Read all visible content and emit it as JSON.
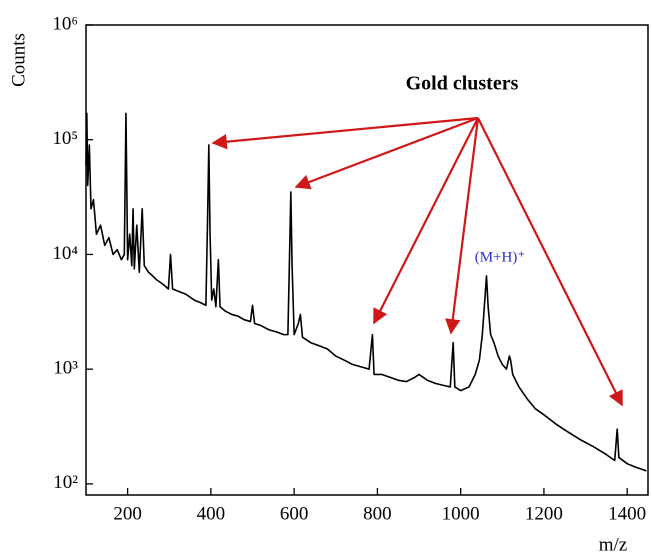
{
  "chart_data": {
    "type": "line",
    "log_y": true,
    "ylabel": "Counts",
    "xlabel": "m/z",
    "annotations": [
      "Gold clusters",
      "(M+H)⁺"
    ],
    "color": "#000000",
    "xlim": [
      100,
      1450
    ],
    "xticks": [
      200,
      400,
      600,
      800,
      1000,
      1200,
      1400
    ],
    "ylim": [
      80,
      1000000
    ],
    "yticks": [
      {
        "value": 100,
        "label": "10²"
      },
      {
        "value": 1000,
        "label": "10³"
      },
      {
        "value": 10000,
        "label": "10⁴"
      },
      {
        "value": 100000,
        "label": "10⁵"
      },
      {
        "value": 1000000,
        "label": "10⁶"
      }
    ],
    "x": [
      100,
      102,
      104,
      108,
      112,
      118,
      125,
      135,
      145,
      155,
      165,
      175,
      185,
      192,
      196,
      200,
      205,
      210,
      213,
      216,
      222,
      228,
      235,
      240,
      250,
      260,
      270,
      285,
      298,
      303,
      308,
      320,
      340,
      360,
      375,
      388,
      392,
      395,
      398,
      402,
      407,
      412,
      418,
      422,
      435,
      450,
      465,
      480,
      495,
      500,
      505,
      520,
      540,
      560,
      575,
      585,
      589,
      592,
      595,
      600,
      610,
      615,
      620,
      640,
      660,
      680,
      700,
      720,
      740,
      760,
      780,
      788,
      792,
      810,
      830,
      850,
      870,
      890,
      900,
      920,
      940,
      960,
      975,
      982,
      986,
      1000,
      1020,
      1035,
      1045,
      1052,
      1058,
      1062,
      1066,
      1072,
      1080,
      1090,
      1100,
      1110,
      1117,
      1120,
      1125,
      1140,
      1160,
      1180,
      1200,
      1230,
      1260,
      1290,
      1320,
      1350,
      1370,
      1376,
      1380,
      1400,
      1420,
      1446
    ],
    "values": [
      60000,
      170000,
      40000,
      90000,
      25000,
      30000,
      15000,
      18000,
      12000,
      14000,
      10000,
      11000,
      9000,
      10000,
      170000,
      9000,
      15000,
      8000,
      25000,
      7500,
      18000,
      7000,
      25000,
      8000,
      7000,
      6500,
      6000,
      5500,
      5000,
      10000,
      5000,
      4800,
      4500,
      4000,
      3800,
      3600,
      20000,
      90000,
      15000,
      4000,
      5000,
      3500,
      9000,
      3500,
      3200,
      3000,
      2900,
      2700,
      2600,
      3600,
      2500,
      2400,
      2200,
      2100,
      2000,
      2000,
      10000,
      35000,
      8000,
      2000,
      2500,
      3000,
      1900,
      1700,
      1600,
      1500,
      1300,
      1200,
      1100,
      1050,
      1000,
      2000,
      900,
      900,
      850,
      800,
      780,
      850,
      900,
      800,
      750,
      720,
      700,
      1700,
      700,
      650,
      700,
      900,
      1200,
      2000,
      4000,
      6500,
      3500,
      2000,
      1700,
      1300,
      1100,
      1000,
      1300,
      1200,
      900,
      700,
      550,
      450,
      400,
      330,
      280,
      240,
      210,
      180,
      160,
      300,
      170,
      150,
      140,
      130
    ]
  }
}
